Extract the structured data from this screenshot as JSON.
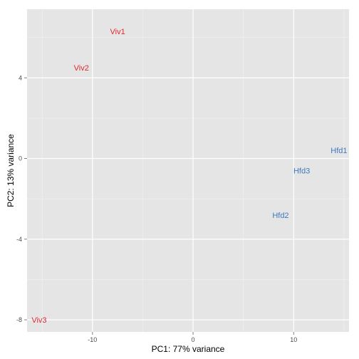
{
  "chart_data": {
    "type": "scatter",
    "title": "",
    "xlabel": "PC1: 77% variance",
    "ylabel": "PC2: 13% variance",
    "xlim": [
      -16.5,
      15.5
    ],
    "ylim": [
      -8.6,
      7.4
    ],
    "xticks": [
      -10,
      0,
      10
    ],
    "yticks": [
      -8,
      -4,
      0,
      4
    ],
    "grid": true,
    "legend": "none",
    "colors": {
      "Viv": "#e0282e",
      "Hfd": "#3f79bf"
    },
    "points": [
      {
        "label": "Viv1",
        "group": "Viv",
        "x": -7.5,
        "y": 6.3
      },
      {
        "label": "Viv2",
        "group": "Viv",
        "x": -11.1,
        "y": 4.5
      },
      {
        "label": "Viv3",
        "group": "Viv",
        "x": -15.3,
        "y": -8.0
      },
      {
        "label": "Hfd1",
        "group": "Hfd",
        "x": 14.5,
        "y": 0.4
      },
      {
        "label": "Hfd3",
        "group": "Hfd",
        "x": 10.8,
        "y": -0.6
      },
      {
        "label": "Hfd2",
        "group": "Hfd",
        "x": 8.7,
        "y": -2.8
      }
    ]
  }
}
